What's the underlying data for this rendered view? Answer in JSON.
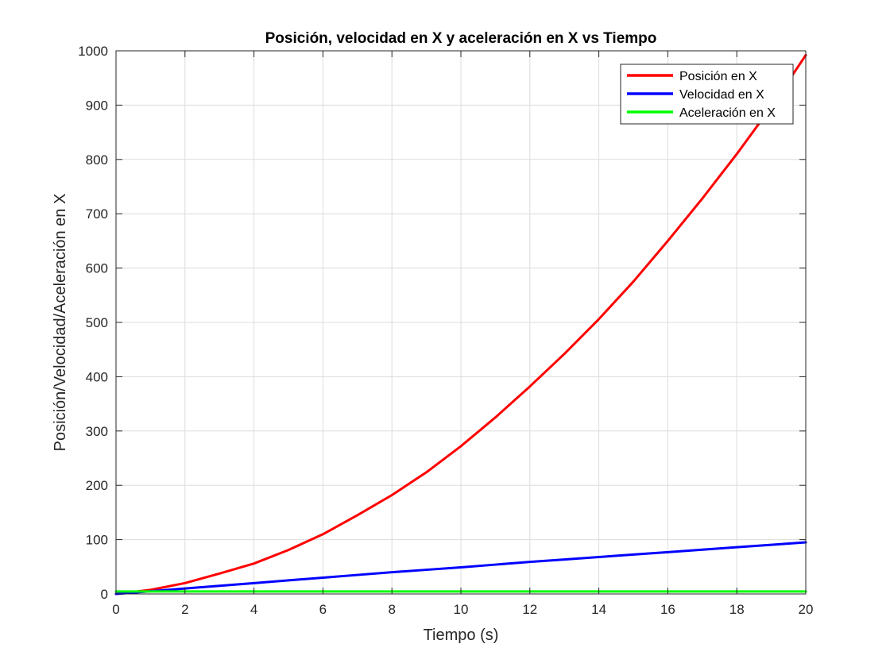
{
  "chart_data": {
    "type": "line",
    "title": "Posición, velocidad en X y aceleración en X vs Tiempo",
    "xlabel": "Tiempo (s)",
    "ylabel": "Posición/Velocidad/Aceleración en X",
    "xlim": [
      0,
      20
    ],
    "ylim": [
      0,
      1000
    ],
    "xticks": [
      "0",
      "2",
      "4",
      "6",
      "8",
      "10",
      "12",
      "14",
      "16",
      "18",
      "20"
    ],
    "yticks": [
      "0",
      "100",
      "200",
      "300",
      "400",
      "500",
      "600",
      "700",
      "800",
      "900",
      "1000"
    ],
    "grid": true,
    "legend_position": "top-right",
    "x": [
      0,
      1,
      2,
      3,
      4,
      5,
      6,
      7,
      8,
      9,
      10,
      11,
      12,
      13,
      14,
      15,
      16,
      17,
      18,
      19,
      20
    ],
    "series": [
      {
        "name": "Posición en X",
        "color": "#ff0000",
        "values": [
          0,
          7.5,
          20,
          37.5,
          56,
          81,
          110,
          145,
          182,
          224,
          272,
          325,
          382,
          442,
          506,
          575,
          650,
          728,
          810,
          897,
          992
        ]
      },
      {
        "name": "Velocidad en X",
        "color": "#0000ff",
        "values": [
          0,
          5,
          10,
          15,
          20,
          25,
          30,
          35,
          40,
          44.5,
          49,
          54,
          59,
          63.5,
          68,
          72.5,
          77,
          81.5,
          86,
          90.5,
          95
        ]
      },
      {
        "name": "Aceleración en X",
        "color": "#00ff00",
        "values": [
          4.5,
          4.5,
          4.5,
          4.5,
          4.5,
          4.5,
          4.5,
          4.5,
          4.5,
          4.5,
          4.5,
          4.5,
          4.5,
          4.5,
          4.5,
          4.5,
          4.5,
          4.5,
          4.5,
          4.5,
          4.5
        ]
      }
    ]
  }
}
